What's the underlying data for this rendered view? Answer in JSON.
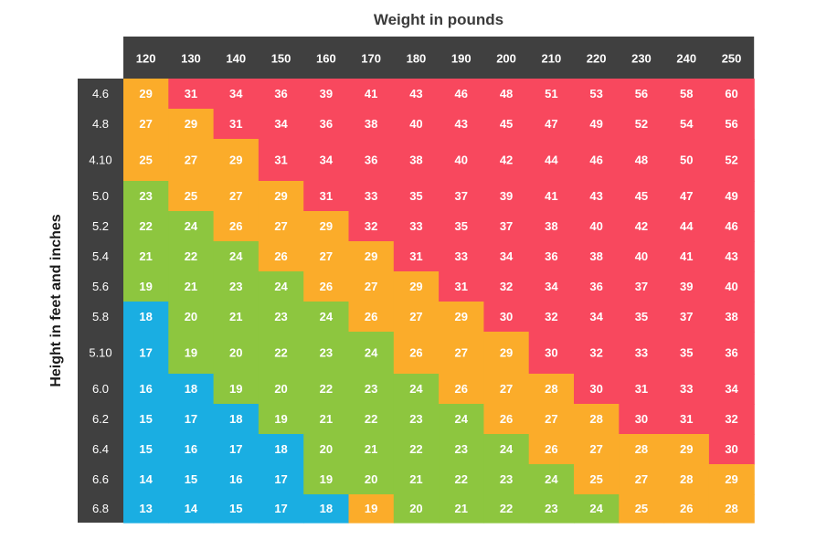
{
  "chart_data": {
    "type": "heatmap",
    "title": "",
    "xlabel": "Weight in pounds",
    "ylabel": "Height in feet and inches",
    "x": [
      "120",
      "130",
      "140",
      "150",
      "160",
      "170",
      "180",
      "190",
      "200",
      "210",
      "220",
      "230",
      "240",
      "250"
    ],
    "y": [
      "4.6",
      "4.8",
      "4.10",
      "5.0",
      "5.2",
      "5.4",
      "5.6",
      "5.8",
      "5.10",
      "6.0",
      "6.2",
      "6.4",
      "6.6",
      "6.8"
    ],
    "values": [
      [
        29,
        31,
        34,
        36,
        39,
        41,
        43,
        46,
        48,
        51,
        53,
        56,
        58,
        60
      ],
      [
        27,
        29,
        31,
        34,
        36,
        38,
        40,
        43,
        45,
        47,
        49,
        52,
        54,
        56
      ],
      [
        25,
        27,
        29,
        31,
        34,
        36,
        38,
        40,
        42,
        44,
        46,
        48,
        50,
        52
      ],
      [
        23,
        25,
        27,
        29,
        31,
        33,
        35,
        37,
        39,
        41,
        43,
        45,
        47,
        49
      ],
      [
        22,
        24,
        26,
        27,
        29,
        32,
        33,
        35,
        37,
        38,
        40,
        42,
        44,
        46
      ],
      [
        21,
        22,
        24,
        26,
        27,
        29,
        31,
        33,
        34,
        36,
        38,
        40,
        41,
        43
      ],
      [
        19,
        21,
        23,
        24,
        26,
        27,
        29,
        31,
        32,
        34,
        36,
        37,
        39,
        40
      ],
      [
        18,
        20,
        21,
        23,
        24,
        26,
        27,
        29,
        30,
        32,
        34,
        35,
        37,
        38
      ],
      [
        17,
        19,
        20,
        22,
        23,
        24,
        26,
        27,
        29,
        30,
        32,
        33,
        35,
        36
      ],
      [
        16,
        18,
        19,
        20,
        22,
        23,
        24,
        26,
        27,
        28,
        30,
        31,
        33,
        34
      ],
      [
        15,
        17,
        18,
        19,
        21,
        22,
        23,
        24,
        26,
        27,
        28,
        30,
        31,
        32
      ],
      [
        15,
        16,
        17,
        18,
        20,
        21,
        22,
        23,
        24,
        26,
        27,
        28,
        29,
        30
      ],
      [
        14,
        15,
        16,
        17,
        19,
        20,
        21,
        22,
        23,
        24,
        25,
        27,
        28,
        29
      ],
      [
        13,
        14,
        15,
        17,
        18,
        19,
        20,
        21,
        22,
        23,
        24,
        25,
        26,
        28
      ]
    ],
    "categories_by_cell": [
      [
        "orange",
        "red",
        "red",
        "red",
        "red",
        "red",
        "red",
        "red",
        "red",
        "red",
        "red",
        "red",
        "red",
        "red"
      ],
      [
        "orange",
        "orange",
        "red",
        "red",
        "red",
        "red",
        "red",
        "red",
        "red",
        "red",
        "red",
        "red",
        "red",
        "red"
      ],
      [
        "orange",
        "orange",
        "orange",
        "red",
        "red",
        "red",
        "red",
        "red",
        "red",
        "red",
        "red",
        "red",
        "red",
        "red"
      ],
      [
        "green",
        "orange",
        "orange",
        "orange",
        "red",
        "red",
        "red",
        "red",
        "red",
        "red",
        "red",
        "red",
        "red",
        "red"
      ],
      [
        "green",
        "green",
        "orange",
        "orange",
        "orange",
        "red",
        "red",
        "red",
        "red",
        "red",
        "red",
        "red",
        "red",
        "red"
      ],
      [
        "green",
        "green",
        "green",
        "orange",
        "orange",
        "orange",
        "red",
        "red",
        "red",
        "red",
        "red",
        "red",
        "red",
        "red"
      ],
      [
        "green",
        "green",
        "green",
        "green",
        "orange",
        "orange",
        "orange",
        "red",
        "red",
        "red",
        "red",
        "red",
        "red",
        "red"
      ],
      [
        "blue",
        "green",
        "green",
        "green",
        "green",
        "orange",
        "orange",
        "orange",
        "red",
        "red",
        "red",
        "red",
        "red",
        "red"
      ],
      [
        "blue",
        "green",
        "green",
        "green",
        "green",
        "green",
        "orange",
        "orange",
        "orange",
        "red",
        "red",
        "red",
        "red",
        "red"
      ],
      [
        "blue",
        "blue",
        "green",
        "green",
        "green",
        "green",
        "green",
        "orange",
        "orange",
        "orange",
        "red",
        "red",
        "red",
        "red"
      ],
      [
        "blue",
        "blue",
        "blue",
        "green",
        "green",
        "green",
        "green",
        "green",
        "orange",
        "orange",
        "orange",
        "red",
        "red",
        "red"
      ],
      [
        "blue",
        "blue",
        "blue",
        "blue",
        "green",
        "green",
        "green",
        "green",
        "green",
        "orange",
        "orange",
        "orange",
        "orange",
        "red"
      ],
      [
        "blue",
        "blue",
        "blue",
        "blue",
        "green",
        "green",
        "green",
        "green",
        "green",
        "green",
        "orange",
        "orange",
        "orange",
        "orange"
      ],
      [
        "blue",
        "blue",
        "blue",
        "blue",
        "blue",
        "orange",
        "green",
        "green",
        "green",
        "green",
        "green",
        "orange",
        "orange",
        "orange"
      ]
    ],
    "colors": {
      "blue": "#1aaee2",
      "green": "#8dc63f",
      "orange": "#fbac2a",
      "red": "#f8485e",
      "header_bg": "#404040",
      "header_text": "#ffffff",
      "cell_text": "#ffffff"
    },
    "grid": false,
    "legend": "none"
  }
}
